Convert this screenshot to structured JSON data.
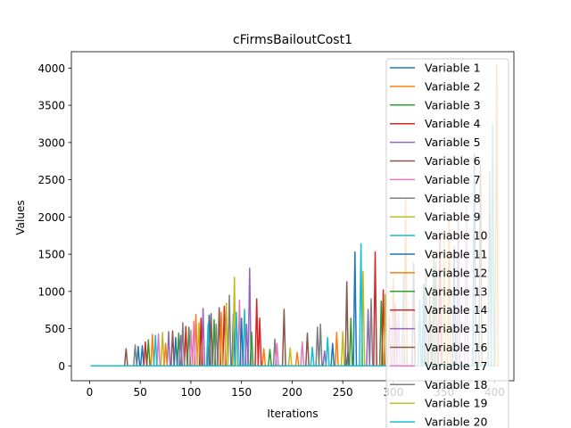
{
  "chart_data": {
    "type": "line",
    "title": "cFirmsBailoutCost1",
    "xlabel": "Iterations",
    "ylabel": "Values",
    "xlim": [
      -18,
      419
    ],
    "ylim": [
      -200,
      4220
    ],
    "xticks": [
      0,
      50,
      100,
      150,
      200,
      250,
      300,
      350,
      400
    ],
    "yticks": [
      0,
      500,
      1000,
      1500,
      2000,
      2500,
      3000,
      3500,
      4000
    ],
    "legend_position": "upper-right",
    "grid": false,
    "series": [
      {
        "name": "Variable 1",
        "color": "#1f77b4",
        "spikes": [
          [
            48,
            260
          ],
          [
            52,
            270
          ],
          [
            118,
            680
          ],
          [
            142,
            700
          ],
          [
            255,
            180
          ],
          [
            262,
            1530
          ],
          [
            320,
            1380
          ],
          [
            360,
            1600
          ],
          [
            380,
            2850
          ]
        ]
      },
      {
        "name": "Variable 2",
        "color": "#ff7f0e",
        "spikes": [
          [
            62,
            420
          ],
          [
            105,
            690
          ],
          [
            172,
            230
          ],
          [
            244,
            450
          ],
          [
            300,
            1180
          ],
          [
            355,
            1950
          ],
          [
            402,
            4040
          ]
        ]
      },
      {
        "name": "Variable 3",
        "color": "#2ca02c",
        "spikes": [
          [
            58,
            350
          ],
          [
            88,
            440
          ],
          [
            123,
            620
          ],
          [
            178,
            220
          ],
          [
            288,
            870
          ],
          [
            340,
            1450
          ]
        ]
      },
      {
        "name": "Variable 4",
        "color": "#d62728",
        "spikes": [
          [
            55,
            320
          ],
          [
            95,
            530
          ],
          [
            133,
            800
          ],
          [
            168,
            640
          ],
          [
            282,
            1530
          ],
          [
            346,
            1780
          ]
        ]
      },
      {
        "name": "Variable 5",
        "color": "#9467bd",
        "spikes": [
          [
            78,
            460
          ],
          [
            112,
            770
          ],
          [
            158,
            1310
          ],
          [
            232,
            200
          ],
          [
            302,
            840
          ],
          [
            364,
            2000
          ]
        ]
      },
      {
        "name": "Variable 6",
        "color": "#8c564b",
        "spikes": [
          [
            36,
            230
          ],
          [
            82,
            470
          ],
          [
            128,
            780
          ],
          [
            192,
            760
          ],
          [
            254,
            1130
          ],
          [
            320,
            1240
          ],
          [
            386,
            2700
          ]
        ]
      },
      {
        "name": "Variable 7",
        "color": "#e377c2",
        "spikes": [
          [
            68,
            430
          ],
          [
            103,
            600
          ],
          [
            148,
            880
          ],
          [
            210,
            320
          ],
          [
            296,
            660
          ],
          [
            372,
            2150
          ]
        ]
      },
      {
        "name": "Variable 8",
        "color": "#7f7f7f",
        "spikes": [
          [
            45,
            280
          ],
          [
            92,
            580
          ],
          [
            138,
            950
          ],
          [
            183,
            360
          ],
          [
            228,
            560
          ],
          [
            278,
            900
          ],
          [
            332,
            1300
          ],
          [
            395,
            2600
          ]
        ]
      },
      {
        "name": "Variable 9",
        "color": "#bcbd22",
        "spikes": [
          [
            72,
            450
          ],
          [
            108,
            580
          ],
          [
            143,
            1190
          ],
          [
            198,
            240
          ],
          [
            270,
            1270
          ],
          [
            350,
            1700
          ]
        ]
      },
      {
        "name": "Variable 10",
        "color": "#17becf",
        "spikes": [
          [
            65,
            410
          ],
          [
            117,
            560
          ],
          [
            153,
            760
          ],
          [
            220,
            250
          ],
          [
            268,
            1640
          ],
          [
            310,
            1250
          ],
          [
            398,
            3250
          ]
        ]
      },
      {
        "name": "Variable 11",
        "color": "#1f77b4",
        "spikes": [
          [
            85,
            380
          ],
          [
            150,
            640
          ],
          [
            240,
            300
          ],
          [
            330,
            1100
          ]
        ]
      },
      {
        "name": "Variable 12",
        "color": "#ff7f0e",
        "spikes": [
          [
            75,
            300
          ],
          [
            130,
            720
          ],
          [
            205,
            180
          ],
          [
            312,
            2250
          ]
        ]
      },
      {
        "name": "Variable 13",
        "color": "#2ca02c",
        "spikes": [
          [
            98,
            520
          ],
          [
            160,
            450
          ],
          [
            258,
            640
          ]
        ]
      },
      {
        "name": "Variable 14",
        "color": "#d62728",
        "spikes": [
          [
            110,
            640
          ],
          [
            165,
            900
          ],
          [
            290,
            1020
          ]
        ]
      },
      {
        "name": "Variable 15",
        "color": "#9467bd",
        "spikes": [
          [
            90,
            410
          ],
          [
            155,
            560
          ],
          [
            275,
            760
          ]
        ]
      },
      {
        "name": "Variable 16",
        "color": "#8c564b",
        "spikes": [
          [
            120,
            700
          ],
          [
            215,
            440
          ],
          [
            336,
            980
          ]
        ]
      },
      {
        "name": "Variable 17",
        "color": "#e377c2",
        "spikes": [
          [
            100,
            480
          ],
          [
            185,
            300
          ],
          [
            305,
            720
          ]
        ]
      },
      {
        "name": "Variable 18",
        "color": "#7f7f7f",
        "spikes": [
          [
            125,
            560
          ],
          [
            225,
            520
          ],
          [
            342,
            1400
          ]
        ]
      },
      {
        "name": "Variable 19",
        "color": "#bcbd22",
        "spikes": [
          [
            135,
            840
          ],
          [
            250,
            460
          ],
          [
            292,
            960
          ]
        ]
      },
      {
        "name": "Variable 20",
        "color": "#17becf",
        "spikes": [
          [
            145,
            720
          ],
          [
            235,
            380
          ],
          [
            326,
            880
          ]
        ]
      }
    ]
  }
}
